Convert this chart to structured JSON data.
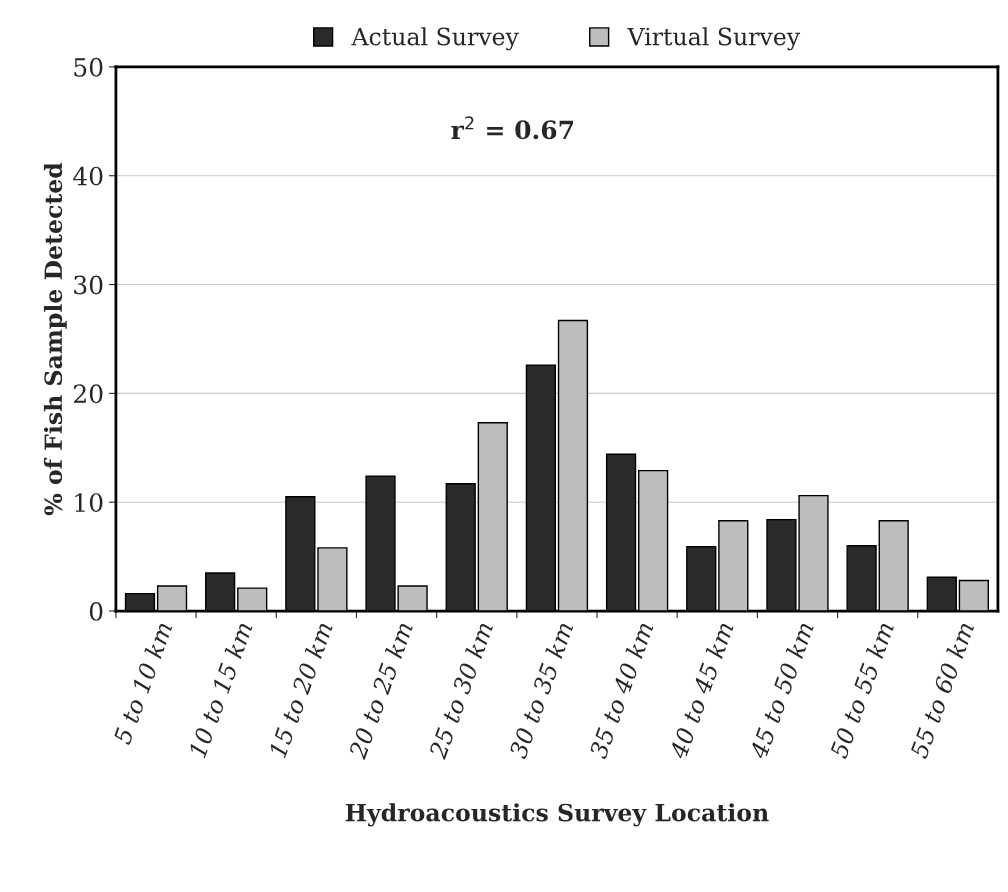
{
  "chart_data": {
    "type": "bar",
    "categories": [
      "5 to 10 km",
      "10 to 15 km",
      "15 to 20 km",
      "20 to 25 km",
      "25 to 30 km",
      "30 to 35 km",
      "35 to 40 km",
      "40 to 45 km",
      "45 to 50 km",
      "50 to 55 km",
      "55 to 60 km"
    ],
    "series": [
      {
        "name": "Actual Survey",
        "color": "#2a2a2a",
        "values": [
          1.6,
          3.5,
          10.5,
          12.4,
          11.7,
          22.6,
          14.4,
          5.9,
          8.4,
          6.0,
          3.1
        ]
      },
      {
        "name": "Virtual Survey",
        "color": "#bdbdbd",
        "values": [
          2.3,
          2.1,
          5.8,
          2.3,
          17.3,
          26.7,
          12.9,
          8.3,
          10.6,
          8.3,
          2.8
        ]
      }
    ],
    "xlabel": "Hydroacoustics Survey Location",
    "ylabel": "% of Fish Sample Detected",
    "ylim": [
      0,
      50
    ],
    "yticks": [
      0,
      10,
      20,
      30,
      40,
      50
    ],
    "grid": "y",
    "legend": "top",
    "annotations": [
      "r$^{2}$ = 0.67"
    ]
  }
}
